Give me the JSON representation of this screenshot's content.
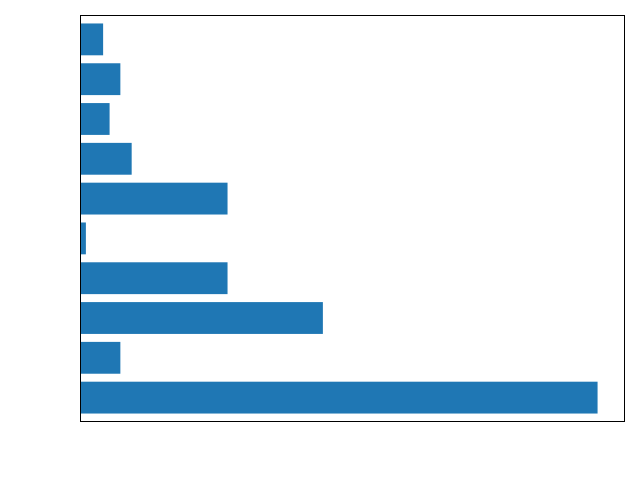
{
  "chart_data": {
    "type": "bar",
    "orientation": "horizontal",
    "categories": [
      "",
      "",
      "",
      "",
      "",
      "",
      "",
      "",
      "",
      ""
    ],
    "values": [
      96,
      7.4,
      45,
      27.3,
      1,
      27.3,
      9.5,
      5.4,
      7.4,
      4.2
    ],
    "xlim": [
      0,
      101
    ],
    "title": "",
    "xlabel": "",
    "ylabel": "",
    "grid": false,
    "legend": "none",
    "bar_color": "#1f77b4",
    "ticks_visible": false
  }
}
